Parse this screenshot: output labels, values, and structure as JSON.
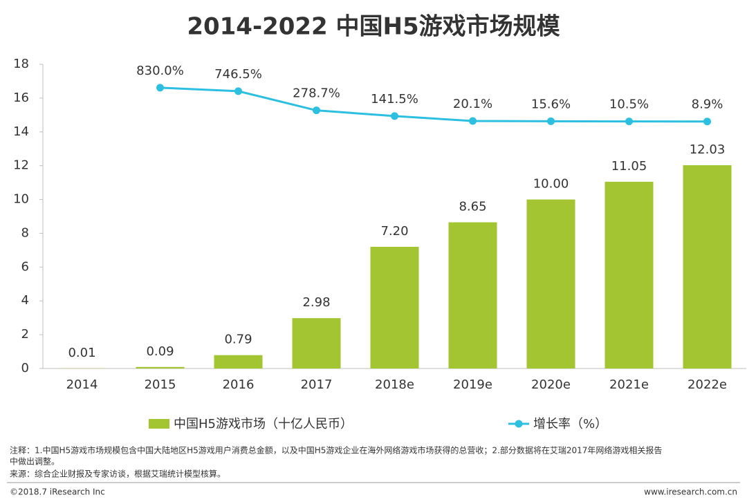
{
  "title": "2014-2022 中国H5游戏市场规模",
  "chart_data": {
    "type": "bar-line",
    "categories": [
      "2014",
      "2015",
      "2016",
      "2017",
      "2018e",
      "2019e",
      "2020e",
      "2021e",
      "2022e"
    ],
    "series": [
      {
        "name": "中国H5游戏市场（十亿人民币）",
        "type": "bar",
        "color": "#a2c531",
        "values": [
          0.01,
          0.09,
          0.79,
          2.98,
          7.2,
          8.65,
          10,
          11.05,
          12.03
        ],
        "value_labels": [
          "0.01",
          "0.09",
          "0.79",
          "2.98",
          "7.20",
          "8.65",
          "10.00",
          "11.05",
          "12.03"
        ]
      },
      {
        "name": "增长率（%）",
        "type": "line",
        "axis": "y2",
        "color": "#2cbfe0",
        "values": [
          null,
          830.0,
          746.5,
          278.7,
          141.5,
          20.1,
          15.6,
          10.5,
          8.9
        ],
        "value_labels": [
          null,
          "830.0%",
          "746.5%",
          "278.7%",
          "141.5%",
          "20.1%",
          "15.6%",
          "10.5%",
          "8.9%"
        ]
      }
    ],
    "ylim": [
      0,
      18
    ],
    "yticks": [
      0,
      2,
      4,
      6,
      8,
      10,
      12,
      14,
      16,
      18
    ],
    "y2lim": [
      -6000,
      1400
    ],
    "grid": false,
    "legend": "bottom"
  },
  "notes": [
    "注释：1.中国H5游戏市场规模包含中国大陆地区H5游戏用户消费总金额，以及中国H5游戏企业在海外网络游戏市场获得的总营收；2.部分数据将在艾瑞2017年网络游戏相关报告",
    "中做出调整。",
    "来源：综合企业财报及专家访谈，根据艾瑞统计模型核算。"
  ],
  "footer": {
    "left": "©2018.7 iResearch Inc",
    "right": "www.iresearch.com.cn"
  }
}
